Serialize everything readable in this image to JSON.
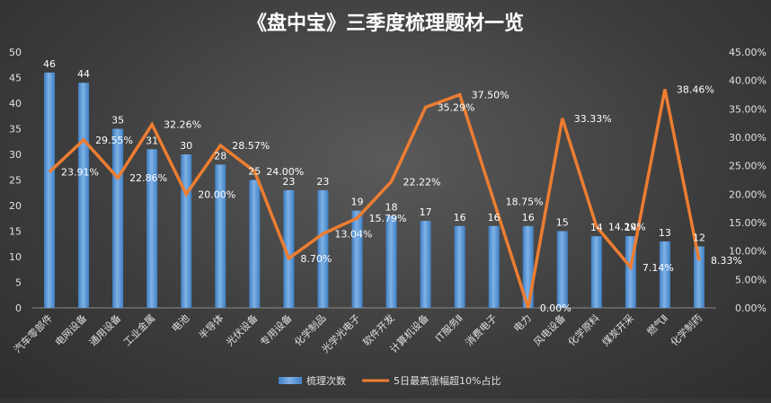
{
  "chart_data": {
    "type": "bar+line",
    "title": "《盘中宝》三季度梳理题材一览",
    "categories": [
      "汽车零部件",
      "电网设备",
      "通用设备",
      "工业金属",
      "电池",
      "半导体",
      "光伏设备",
      "专用设备",
      "化学制品",
      "光学光电子",
      "软件开发",
      "计算机设备",
      "IT服务Ⅱ",
      "消费电子",
      "电力",
      "风电设备",
      "化学原料",
      "煤炭开采",
      "燃气Ⅱ",
      "化学制药"
    ],
    "series": [
      {
        "name": "梳理次数",
        "type": "bar",
        "axis": "left",
        "color": "#5b9bd5",
        "values": [
          46,
          44,
          35,
          31,
          30,
          28,
          25,
          23,
          23,
          19,
          18,
          17,
          16,
          16,
          16,
          15,
          14,
          14,
          13,
          12
        ],
        "labels": [
          "46",
          "44",
          "35",
          "31",
          "30",
          "28",
          "25",
          "23",
          "23",
          "19",
          "18",
          "17",
          "16",
          "16",
          "16",
          "15",
          "14",
          "14",
          "13",
          "12"
        ]
      },
      {
        "name": "5日最高涨幅超10%占比",
        "type": "line",
        "axis": "right",
        "color": "#ed7d31",
        "values": [
          23.91,
          29.55,
          22.86,
          32.26,
          20.0,
          28.57,
          24.0,
          8.7,
          13.04,
          15.79,
          22.22,
          35.29,
          37.5,
          18.75,
          0.0,
          33.33,
          14.29,
          7.14,
          38.46,
          8.33
        ],
        "labels": [
          "23.91%",
          "29.55%",
          "22.86%",
          "32.26%",
          "20.00%",
          "28.57%",
          "24.00%",
          "8.70%",
          "13.04%",
          "15.79%",
          "22.22%",
          "35.29%",
          "37.50%",
          "18.75%",
          "0.00%",
          "33.33%",
          "14.29%",
          "7.14%",
          "38.46%",
          "8.33%"
        ]
      }
    ],
    "y_left": {
      "min": 0,
      "max": 50,
      "ticks": [
        "0",
        "5",
        "10",
        "15",
        "20",
        "25",
        "30",
        "35",
        "40",
        "45",
        "50"
      ]
    },
    "y_right": {
      "min": 0,
      "max": 45,
      "ticks": [
        "0.00%",
        "5.00%",
        "10.00%",
        "15.00%",
        "20.00%",
        "25.00%",
        "30.00%",
        "35.00%",
        "40.00%",
        "45.00%"
      ]
    },
    "grid": false,
    "legend_position": "bottom"
  }
}
